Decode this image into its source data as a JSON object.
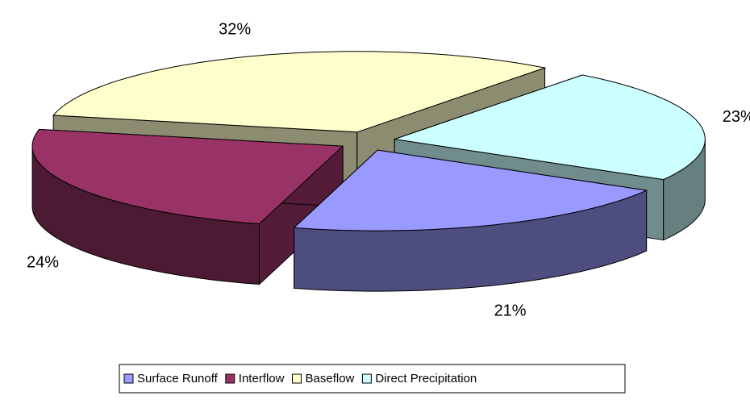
{
  "chart_data": {
    "type": "pie3d",
    "categories": [
      "Surface Runoff",
      "Interflow",
      "Baseflow",
      "Direct Precipitation"
    ],
    "values": [
      21,
      24,
      32,
      23
    ],
    "value_labels": [
      "21%",
      "24%",
      "32%",
      "23%"
    ],
    "colors": [
      "#9999ff",
      "#993366",
      "#ffffcc",
      "#ccffff"
    ]
  }
}
